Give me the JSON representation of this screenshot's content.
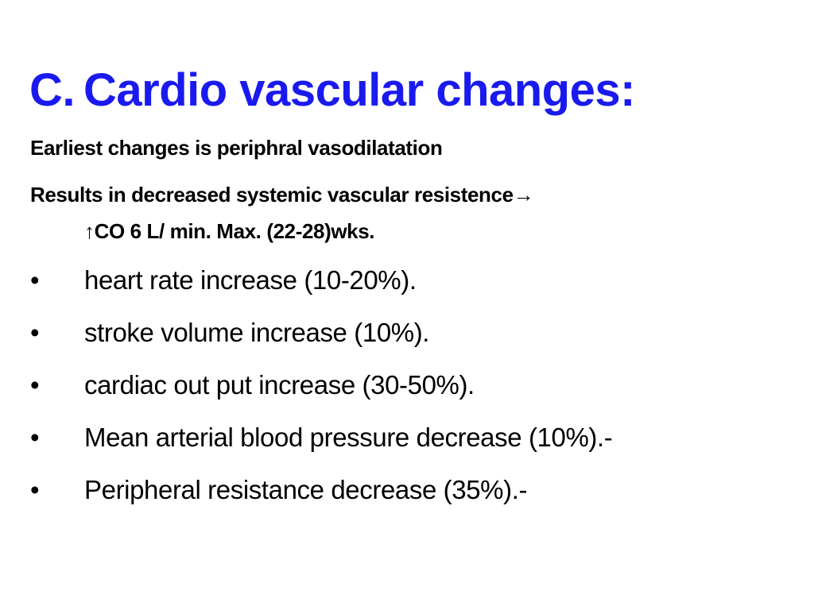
{
  "slide": {
    "title_number": "C.",
    "title_text": "Cardio vascular changes:",
    "line1": "Earliest changes is periphral vasodilatation",
    "line2a": "Results in decreased systemic vascular resistence→",
    "line2b": "↑CO 6 L/ min.   Max. (22-28)wks.",
    "bullet_symbol": "•",
    "bullets": [
      "heart rate increase (10-20%).",
      "stroke volume increase (10%).",
      "cardiac out put increase (30-50%).",
      "Mean arterial blood pressure decrease (10%).-",
      "Peripheral resistance decrease (35%).-"
    ],
    "colors": {
      "title": "#1a1aee",
      "text": "#000000",
      "background": "#ffffff"
    }
  }
}
